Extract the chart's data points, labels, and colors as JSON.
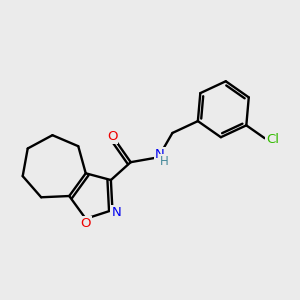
{
  "background_color": "#ebebeb",
  "atom_colors": {
    "C": "#000000",
    "N": "#0000ee",
    "O": "#ee0000",
    "Cl": "#33bb00",
    "H": "#448899"
  },
  "figsize": [
    3.0,
    3.0
  ],
  "dpi": 100
}
